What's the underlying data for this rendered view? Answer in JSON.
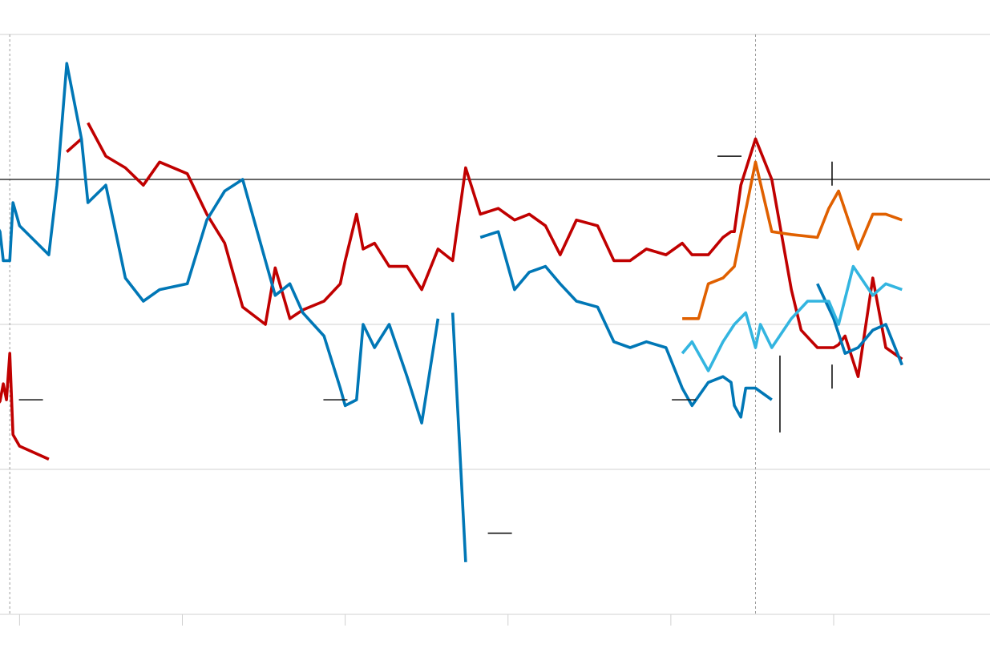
{
  "chart_data": {
    "type": "line",
    "title": "",
    "xlabel": "",
    "ylabel": "",
    "x_range": [
      -0.12,
      5.96
    ],
    "y_range": [
      -3,
      1
    ],
    "baseline_y": 0,
    "grid": true,
    "legend": "none",
    "colors": {
      "red": "#c00000",
      "blue": "#0077b6",
      "orange": "#e06000",
      "light_blue": "#33b5e0",
      "gridline": "#d0d0d0",
      "baseline": "#333333",
      "vline": "#9a9a9a"
    },
    "vertical_reference_lines": [
      -0.06,
      4.52
    ],
    "series": [
      {
        "color_key": "red",
        "segments": [
          [
            [
              -0.14,
              -1.56
            ],
            [
              -0.12,
              -1.53
            ],
            [
              -0.1,
              -1.41
            ],
            [
              -0.08,
              -1.52
            ],
            [
              -0.06,
              -1.2
            ],
            [
              -0.04,
              -1.76
            ],
            [
              0.0,
              -1.84
            ],
            [
              0.18,
              -1.93
            ]
          ],
          [
            [
              0.29,
              0.19
            ],
            [
              0.38,
              0.28
            ]
          ],
          [
            [
              0.42,
              0.39
            ],
            [
              0.53,
              0.16
            ],
            [
              0.65,
              0.08
            ],
            [
              0.76,
              -0.04
            ],
            [
              0.86,
              0.12
            ],
            [
              1.03,
              0.04
            ],
            [
              1.15,
              -0.24
            ],
            [
              1.26,
              -0.44
            ],
            [
              1.37,
              -0.88
            ],
            [
              1.51,
              -1.0
            ],
            [
              1.57,
              -0.61
            ],
            [
              1.66,
              -0.96
            ],
            [
              1.74,
              -0.9
            ],
            [
              1.87,
              -0.84
            ],
            [
              1.97,
              -0.72
            ],
            [
              2.0,
              -0.56
            ],
            [
              2.07,
              -0.24
            ],
            [
              2.11,
              -0.48
            ],
            [
              2.18,
              -0.44
            ],
            [
              2.27,
              -0.6
            ],
            [
              2.38,
              -0.6
            ],
            [
              2.47,
              -0.76
            ],
            [
              2.57,
              -0.48
            ],
            [
              2.66,
              -0.56
            ],
            [
              2.74,
              0.08
            ],
            [
              2.83,
              -0.24
            ],
            [
              2.94,
              -0.2
            ],
            [
              3.04,
              -0.28
            ],
            [
              3.13,
              -0.24
            ],
            [
              3.23,
              -0.32
            ],
            [
              3.32,
              -0.52
            ],
            [
              3.42,
              -0.28
            ],
            [
              3.55,
              -0.32
            ],
            [
              3.65,
              -0.56
            ],
            [
              3.75,
              -0.56
            ],
            [
              3.85,
              -0.48
            ],
            [
              3.97,
              -0.52
            ],
            [
              4.07,
              -0.44
            ],
            [
              4.13,
              -0.52
            ],
            [
              4.23,
              -0.52
            ],
            [
              4.32,
              -0.4
            ],
            [
              4.37,
              -0.36
            ],
            [
              4.39,
              -0.36
            ],
            [
              4.43,
              -0.04
            ],
            [
              4.52,
              0.28
            ],
            [
              4.62,
              0.0
            ],
            [
              4.74,
              -0.76
            ],
            [
              4.8,
              -1.04
            ],
            [
              4.9,
              -1.16
            ],
            [
              5.0,
              -1.16
            ],
            [
              5.03,
              -1.14
            ],
            [
              5.07,
              -1.08
            ],
            [
              5.15,
              -1.36
            ],
            [
              5.24,
              -0.68
            ],
            [
              5.32,
              -1.16
            ],
            [
              5.42,
              -1.24
            ]
          ]
        ]
      },
      {
        "color_key": "blue",
        "segments": [
          [
            [
              -0.14,
              -0.32
            ],
            [
              -0.12,
              -0.36
            ],
            [
              -0.1,
              -0.56
            ],
            [
              -0.06,
              -0.56
            ],
            [
              -0.04,
              -0.16
            ],
            [
              0.0,
              -0.32
            ],
            [
              0.18,
              -0.52
            ],
            [
              0.23,
              -0.04
            ],
            [
              0.29,
              0.8
            ],
            [
              0.38,
              0.28
            ],
            [
              0.42,
              -0.16
            ],
            [
              0.53,
              -0.04
            ],
            [
              0.65,
              -0.68
            ],
            [
              0.76,
              -0.84
            ],
            [
              0.86,
              -0.76
            ],
            [
              1.03,
              -0.72
            ],
            [
              1.15,
              -0.28
            ],
            [
              1.26,
              -0.08
            ],
            [
              1.37,
              0.0
            ],
            [
              1.51,
              -0.56
            ],
            [
              1.57,
              -0.8
            ],
            [
              1.66,
              -0.72
            ],
            [
              1.74,
              -0.92
            ],
            [
              1.87,
              -1.08
            ],
            [
              1.97,
              -1.44
            ],
            [
              2.0,
              -1.56
            ],
            [
              2.07,
              -1.52
            ],
            [
              2.11,
              -1.0
            ],
            [
              2.18,
              -1.16
            ],
            [
              2.27,
              -1.0
            ],
            [
              2.38,
              -1.36
            ],
            [
              2.47,
              -1.68
            ],
            [
              2.57,
              -0.96
            ]
          ],
          [
            [
              2.66,
              -0.92
            ],
            [
              2.74,
              -2.64
            ]
          ],
          [
            [
              2.83,
              -0.4
            ],
            [
              2.94,
              -0.36
            ],
            [
              3.04,
              -0.76
            ],
            [
              3.13,
              -0.64
            ],
            [
              3.23,
              -0.6
            ],
            [
              3.32,
              -0.72
            ],
            [
              3.42,
              -0.84
            ],
            [
              3.55,
              -0.88
            ],
            [
              3.65,
              -1.12
            ],
            [
              3.75,
              -1.16
            ],
            [
              3.85,
              -1.12
            ],
            [
              3.97,
              -1.16
            ],
            [
              4.07,
              -1.44
            ],
            [
              4.13,
              -1.56
            ],
            [
              4.23,
              -1.4
            ],
            [
              4.32,
              -1.36
            ],
            [
              4.37,
              -1.4
            ],
            [
              4.39,
              -1.56
            ],
            [
              4.43,
              -1.64
            ],
            [
              4.46,
              -1.44
            ],
            [
              4.52,
              -1.44
            ],
            [
              4.62,
              -1.52
            ]
          ],
          [
            [
              4.9,
              -0.72
            ],
            [
              5.0,
              -0.96
            ],
            [
              5.07,
              -1.2
            ],
            [
              5.15,
              -1.16
            ],
            [
              5.24,
              -1.04
            ],
            [
              5.32,
              -1.0
            ],
            [
              5.42,
              -1.28
            ]
          ]
        ]
      },
      {
        "color_key": "orange",
        "segments": [
          [
            [
              4.07,
              -0.96
            ],
            [
              4.17,
              -0.96
            ],
            [
              4.23,
              -0.72
            ],
            [
              4.32,
              -0.68
            ],
            [
              4.39,
              -0.6
            ],
            [
              4.52,
              0.12
            ],
            [
              4.62,
              -0.36
            ],
            [
              4.74,
              -0.38
            ],
            [
              4.9,
              -0.4
            ],
            [
              4.97,
              -0.2
            ],
            [
              5.03,
              -0.08
            ],
            [
              5.15,
              -0.48
            ],
            [
              5.24,
              -0.24
            ],
            [
              5.32,
              -0.24
            ],
            [
              5.42,
              -0.28
            ]
          ]
        ]
      },
      {
        "color_key": "light_blue",
        "segments": [
          [
            [
              4.07,
              -1.2
            ],
            [
              4.13,
              -1.12
            ],
            [
              4.23,
              -1.32
            ],
            [
              4.32,
              -1.12
            ],
            [
              4.39,
              -1.0
            ],
            [
              4.46,
              -0.92
            ],
            [
              4.52,
              -1.16
            ],
            [
              4.55,
              -1.0
            ],
            [
              4.62,
              -1.16
            ],
            [
              4.74,
              -0.96
            ],
            [
              4.84,
              -0.84
            ],
            [
              4.97,
              -0.84
            ],
            [
              5.03,
              -1.0
            ],
            [
              5.12,
              -0.6
            ],
            [
              5.24,
              -0.8
            ],
            [
              5.32,
              -0.72
            ],
            [
              5.42,
              -0.76
            ]
          ]
        ]
      }
    ],
    "annotation_marks": [
      {
        "kind": "h",
        "x": 0.07,
        "y": -1.52
      },
      {
        "kind": "h",
        "x": 1.94,
        "y": -1.52
      },
      {
        "kind": "h",
        "x": 2.95,
        "y": -2.44
      },
      {
        "kind": "h",
        "x": 4.08,
        "y": -1.52
      },
      {
        "kind": "h",
        "x": 4.36,
        "y": 0.16
      },
      {
        "kind": "v",
        "x": 4.67,
        "y": -1.48
      },
      {
        "kind": "v",
        "x": 4.99,
        "y": -1.36
      },
      {
        "kind": "v",
        "x": 4.99,
        "y": 0.04
      }
    ],
    "x_ticks": [
      0,
      1,
      2,
      3,
      4,
      5
    ]
  }
}
